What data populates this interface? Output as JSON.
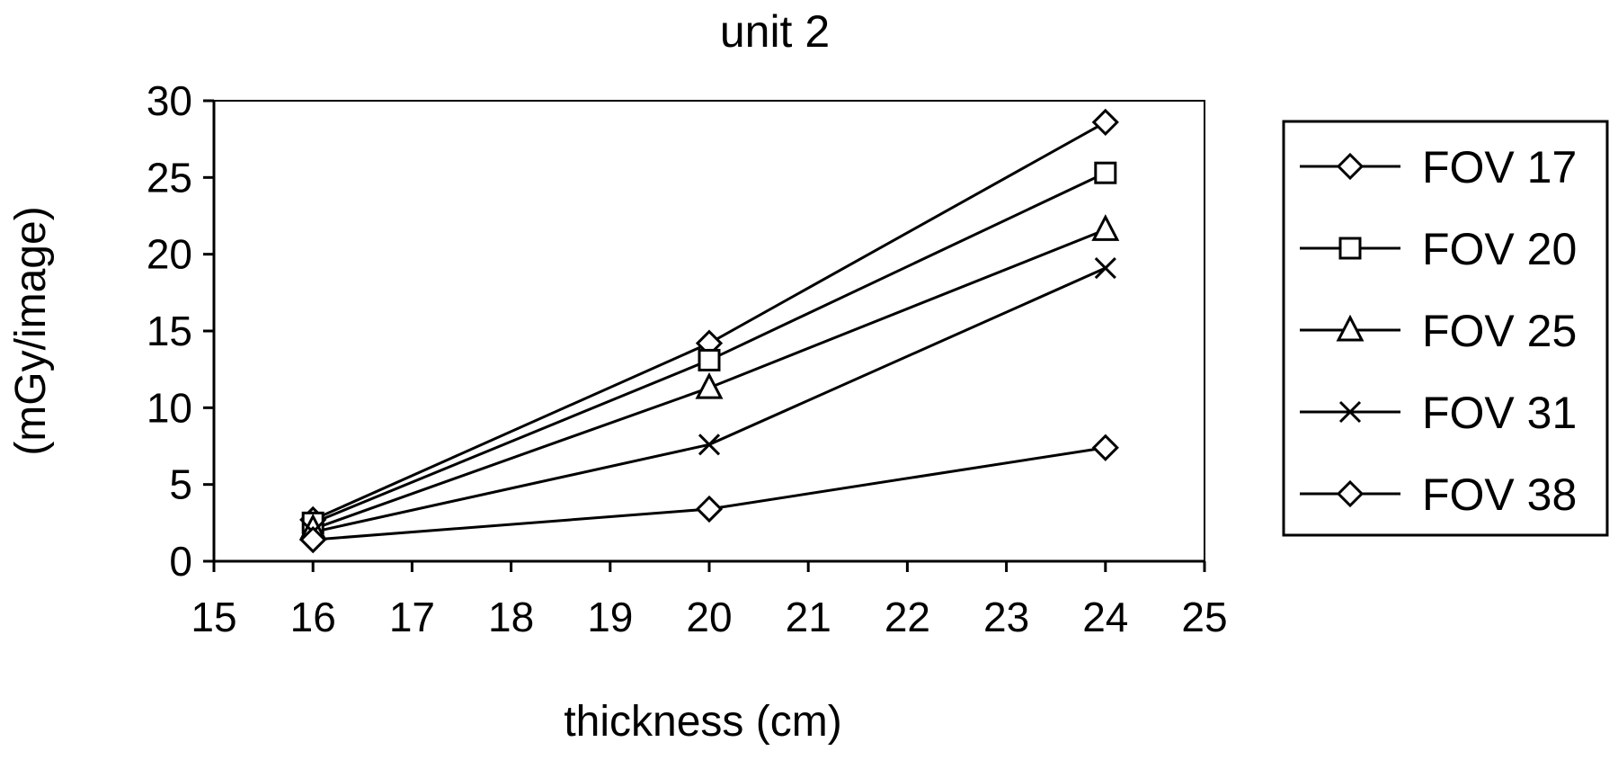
{
  "chart_data": {
    "type": "line",
    "title": "unit 2",
    "xlabel": "thickness (cm)",
    "ylabel": "(mGy/image)",
    "xlim": [
      15,
      25
    ],
    "ylim": [
      0,
      30
    ],
    "xticks": [
      15,
      16,
      17,
      18,
      19,
      20,
      21,
      22,
      23,
      24,
      25
    ],
    "yticks": [
      0,
      5,
      10,
      15,
      20,
      25,
      30
    ],
    "grid": false,
    "legend_position": "right",
    "series": [
      {
        "name": "FOV 17",
        "marker": "diamond",
        "x": [
          16,
          20,
          24
        ],
        "y": [
          2.7,
          14.2,
          28.6
        ]
      },
      {
        "name": "FOV 20",
        "marker": "square",
        "x": [
          16,
          20,
          24
        ],
        "y": [
          2.5,
          13.1,
          25.3
        ]
      },
      {
        "name": "FOV 25",
        "marker": "triangle",
        "x": [
          16,
          20,
          24
        ],
        "y": [
          2.1,
          11.3,
          21.6
        ]
      },
      {
        "name": "FOV 31",
        "marker": "x",
        "x": [
          16,
          20,
          24
        ],
        "y": [
          1.9,
          7.6,
          19.1
        ]
      },
      {
        "name": "FOV 38",
        "marker": "diamond",
        "x": [
          16,
          20,
          24
        ],
        "y": [
          1.4,
          3.4,
          7.4
        ]
      }
    ]
  }
}
